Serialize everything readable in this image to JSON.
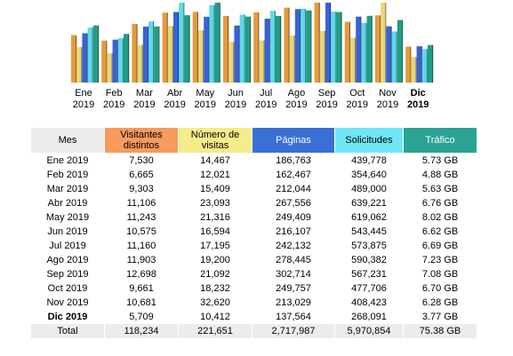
{
  "chart_data": {
    "type": "bar",
    "categories": [
      "Ene 2019",
      "Feb 2019",
      "Mar 2019",
      "Abr 2019",
      "May 2019",
      "Jun 2019",
      "Jul 2019",
      "Ago 2019",
      "Sep 2019",
      "Oct 2019",
      "Nov 2019",
      "Dic 2019"
    ],
    "category_lines": [
      [
        "Ene",
        "2019"
      ],
      [
        "Feb",
        "2019"
      ],
      [
        "Mar",
        "2019"
      ],
      [
        "Abr",
        "2019"
      ],
      [
        "May",
        "2019"
      ],
      [
        "Jun",
        "2019"
      ],
      [
        "Jul",
        "2019"
      ],
      [
        "Ago",
        "2019"
      ],
      [
        "Sep",
        "2019"
      ],
      [
        "Oct",
        "2019"
      ],
      [
        "Nov",
        "2019"
      ],
      [
        "Dic",
        "2019"
      ]
    ],
    "highlight_category": "Dic 2019",
    "series": [
      {
        "name": "Visitantes distintos",
        "color": "#e89a3a",
        "values": [
          7530,
          6665,
          9303,
          11106,
          11243,
          10575,
          11160,
          11903,
          12698,
          9661,
          10681,
          5709
        ]
      },
      {
        "name": "Número de visitas",
        "color": "#e8d77a",
        "values": [
          14467,
          12021,
          15409,
          23093,
          21316,
          16594,
          17195,
          19200,
          21092,
          18232,
          32620,
          10412
        ]
      },
      {
        "name": "Páginas",
        "color": "#3a62d6",
        "values": [
          186763,
          162467,
          212044,
          267556,
          249409,
          216107,
          242132,
          278445,
          302714,
          249757,
          213029,
          137564
        ]
      },
      {
        "name": "Solicitudes",
        "color": "#5fd8e8",
        "values": [
          439778,
          354640,
          489000,
          639221,
          619062,
          543445,
          573875,
          590382,
          567231,
          477706,
          408423,
          268091
        ]
      },
      {
        "name": "Tráfico",
        "color": "#1f9e86",
        "values": [
          5.73,
          4.88,
          5.63,
          6.76,
          8.02,
          6.62,
          6.69,
          7.23,
          7.08,
          6.7,
          6.28,
          3.77
        ]
      }
    ]
  },
  "table": {
    "headers": {
      "mes": "Mes",
      "visitantes": [
        "Visitantes",
        "distintos"
      ],
      "visitas": [
        "Número de",
        "visitas"
      ],
      "paginas": "Páginas",
      "solicitudes": "Solicitudes",
      "trafico": "Tráfico"
    },
    "rows": [
      {
        "mes": "Ene 2019",
        "visitantes": "7,530",
        "visitas": "14,467",
        "paginas": "186,763",
        "solicitudes": "439,778",
        "trafico": "5.73 GB"
      },
      {
        "mes": "Feb 2019",
        "visitantes": "6,665",
        "visitas": "12,021",
        "paginas": "162,467",
        "solicitudes": "354,640",
        "trafico": "4.88 GB"
      },
      {
        "mes": "Mar 2019",
        "visitantes": "9,303",
        "visitas": "15,409",
        "paginas": "212,044",
        "solicitudes": "489,000",
        "trafico": "5.63 GB"
      },
      {
        "mes": "Abr 2019",
        "visitantes": "11,106",
        "visitas": "23,093",
        "paginas": "267,556",
        "solicitudes": "639,221",
        "trafico": "6.76 GB"
      },
      {
        "mes": "May 2019",
        "visitantes": "11,243",
        "visitas": "21,316",
        "paginas": "249,409",
        "solicitudes": "619,062",
        "trafico": "8.02 GB"
      },
      {
        "mes": "Jun 2019",
        "visitantes": "10,575",
        "visitas": "16,594",
        "paginas": "216,107",
        "solicitudes": "543,445",
        "trafico": "6.62 GB"
      },
      {
        "mes": "Jul 2019",
        "visitantes": "11,160",
        "visitas": "17,195",
        "paginas": "242,132",
        "solicitudes": "573,875",
        "trafico": "6.69 GB"
      },
      {
        "mes": "Ago 2019",
        "visitantes": "11,903",
        "visitas": "19,200",
        "paginas": "278,445",
        "solicitudes": "590,382",
        "trafico": "7.23 GB"
      },
      {
        "mes": "Sep 2019",
        "visitantes": "12,698",
        "visitas": "21,092",
        "paginas": "302,714",
        "solicitudes": "567,231",
        "trafico": "7.08 GB"
      },
      {
        "mes": "Oct 2019",
        "visitantes": "9,661",
        "visitas": "18,232",
        "paginas": "249,757",
        "solicitudes": "477,706",
        "trafico": "6.70 GB"
      },
      {
        "mes": "Nov 2019",
        "visitantes": "10,681",
        "visitas": "32,620",
        "paginas": "213,029",
        "solicitudes": "408,423",
        "trafico": "6.28 GB"
      },
      {
        "mes": "Dic 2019",
        "visitantes": "5,709",
        "visitas": "10,412",
        "paginas": "137,564",
        "solicitudes": "268,091",
        "trafico": "3.77 GB"
      }
    ],
    "total": {
      "mes": "Total",
      "visitantes": "118,234",
      "visitas": "221,651",
      "paginas": "2,717,987",
      "solicitudes": "5,970,854",
      "trafico": "75.38 GB"
    }
  }
}
